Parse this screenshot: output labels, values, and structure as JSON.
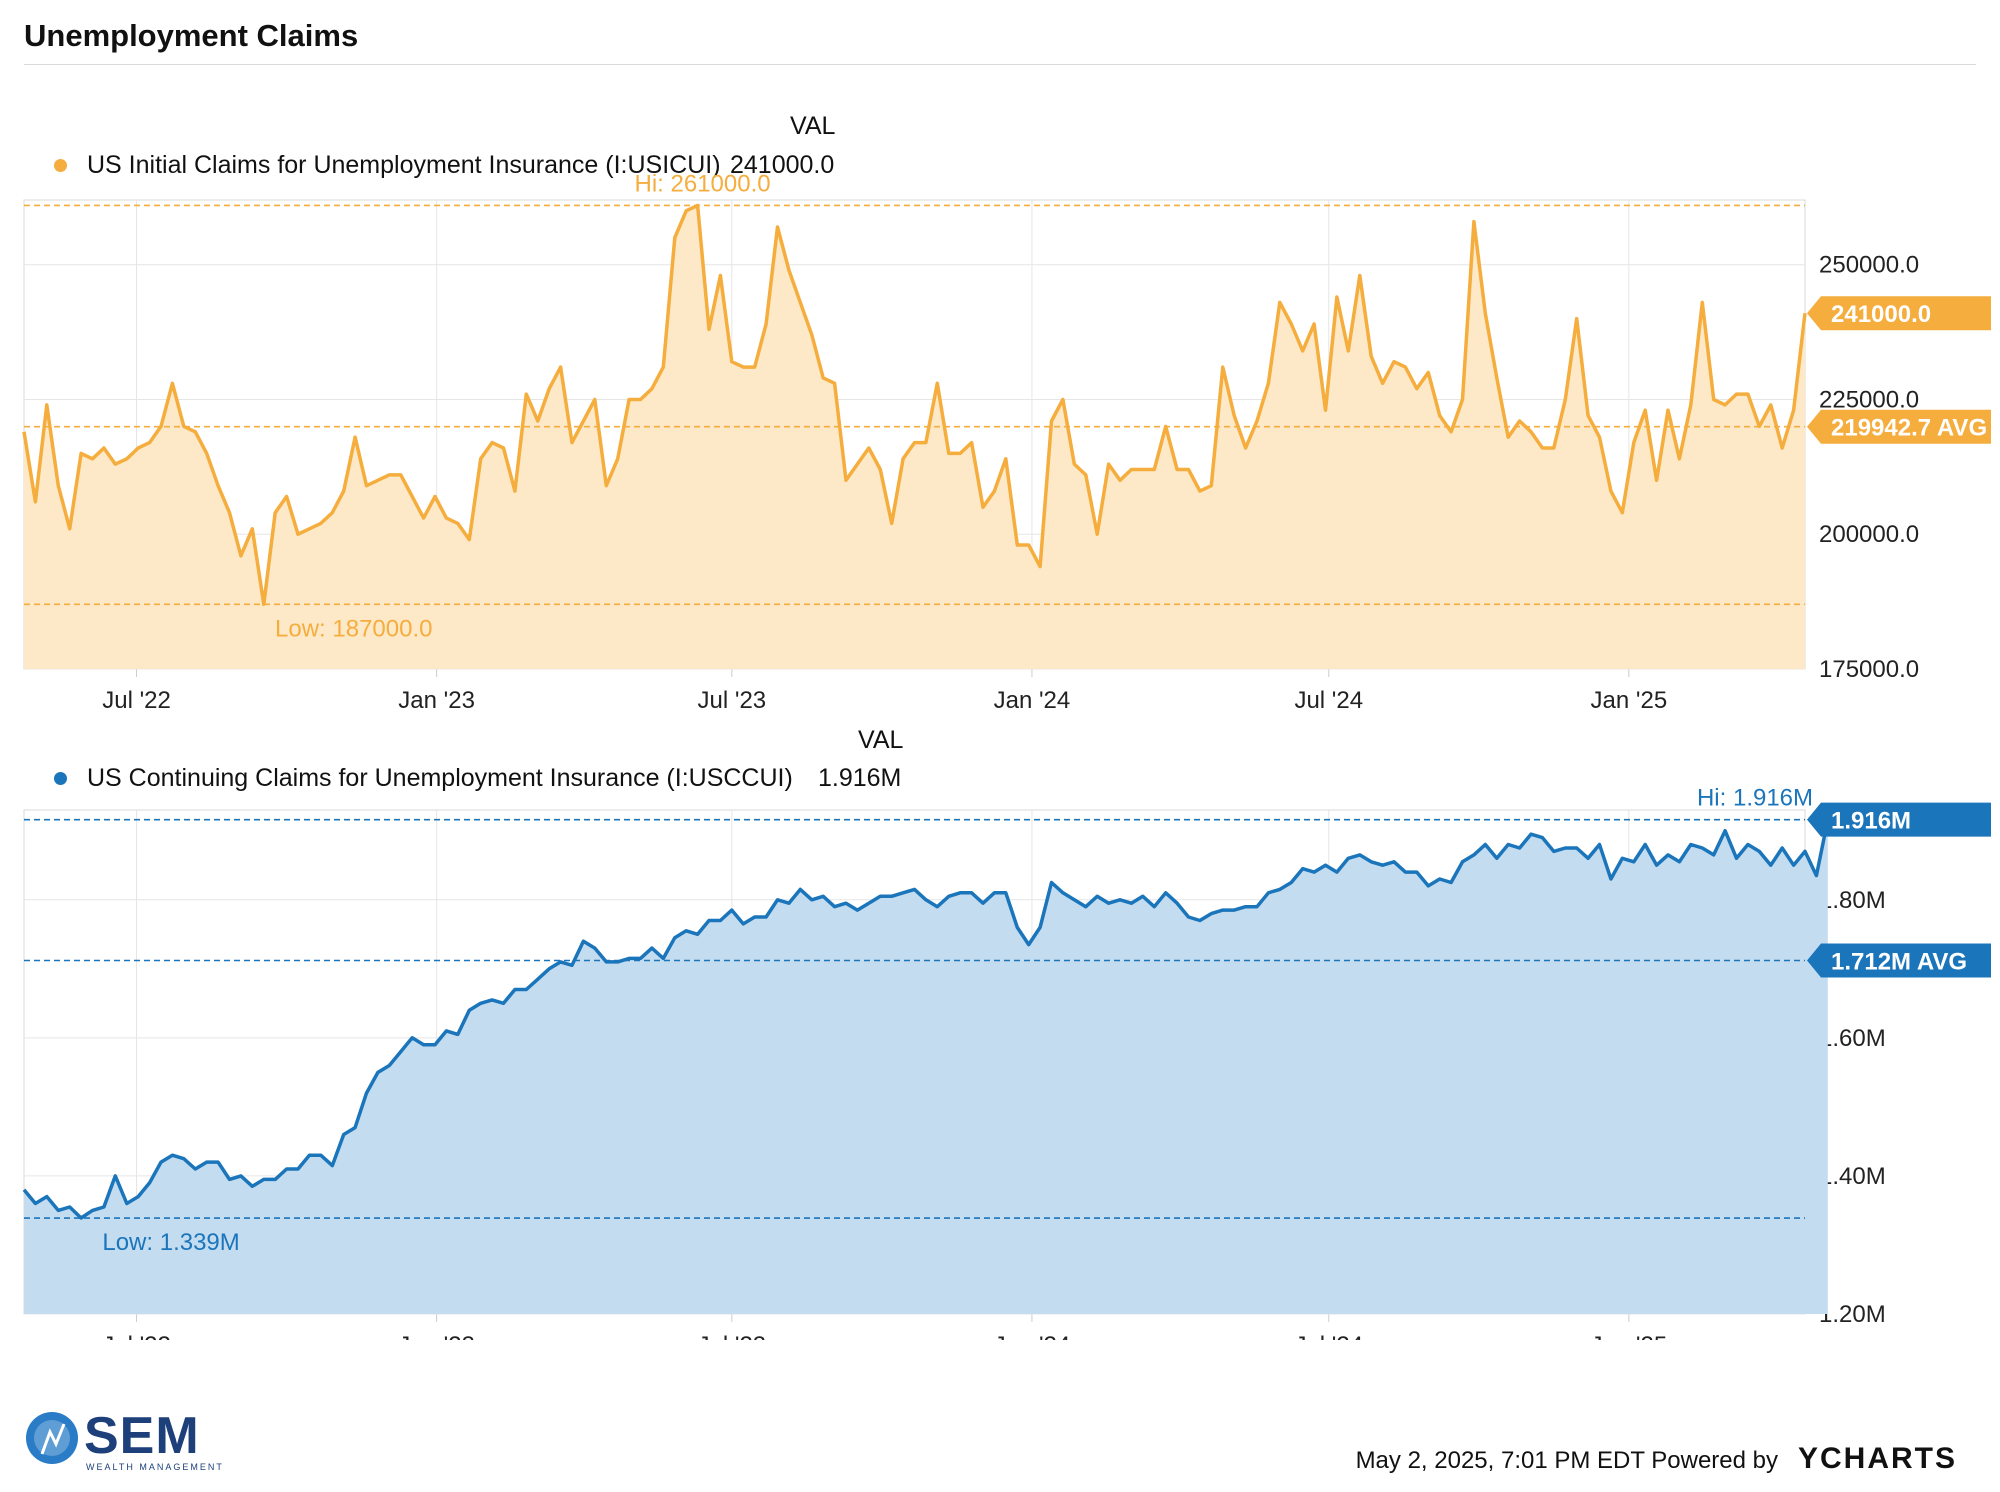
{
  "header": {
    "title": "Unemployment Claims"
  },
  "footer": {
    "timestamp": "May 2, 2025, 7:01 PM EDT Powered by",
    "ycharts": "YCHARTS",
    "logo_text": "SEM",
    "logo_sub": "WEALTH MANAGEMENT"
  },
  "colors": {
    "initial": "#f5ad3d",
    "continuing": "#1b75bb"
  },
  "x_axis": {
    "ticks": [
      "Jul '22",
      "Jan '23",
      "Jul '23",
      "Jan '24",
      "Jul '24",
      "Jan '25"
    ],
    "tick_dates": [
      "2022-07-01",
      "2023-01-01",
      "2023-07-01",
      "2024-01-01",
      "2024-07-01",
      "2025-01-01"
    ],
    "range": [
      "2022-04-23",
      "2025-04-19"
    ]
  },
  "chart_data": [
    {
      "type": "area",
      "legend_header": "VAL",
      "series": [
        {
          "name": "US Initial Claims for Unemployment Insurance (I:USICUI)",
          "latest": "241000.0"
        }
      ],
      "ylim": [
        175000,
        262000
      ],
      "yticks": [
        "175000.0",
        "200000.0",
        "225000.0",
        "250000.0"
      ],
      "ytick_values": [
        175000,
        200000,
        225000,
        250000
      ],
      "hi": {
        "label": "Hi: 261000.0",
        "value": 261000
      },
      "low": {
        "label": "Low: 187000.0",
        "value": 187000
      },
      "avg": {
        "label": "219942.7 AVG",
        "value": 219942.7
      },
      "last_label": "241000.0",
      "legend": "top-left",
      "grid": true,
      "start_date": "2022-04-23",
      "values": [
        219000,
        206000,
        224000,
        209000,
        201000,
        215000,
        214000,
        216000,
        213000,
        214000,
        216000,
        217000,
        220000,
        228000,
        220000,
        219000,
        215000,
        209000,
        204000,
        196000,
        201000,
        187000,
        204000,
        207000,
        200000,
        201000,
        202000,
        204000,
        208000,
        218000,
        209000,
        210000,
        211000,
        211000,
        207000,
        203000,
        207000,
        203000,
        202000,
        199000,
        214000,
        217000,
        216000,
        208000,
        226000,
        221000,
        227000,
        231000,
        217000,
        221000,
        225000,
        209000,
        214000,
        225000,
        225000,
        227000,
        231000,
        255000,
        260000,
        261000,
        238000,
        248000,
        232000,
        231000,
        231000,
        239000,
        257000,
        249000,
        243000,
        237000,
        229000,
        228000,
        210000,
        213000,
        216000,
        212000,
        202000,
        214000,
        217000,
        217000,
        228000,
        215000,
        215000,
        217000,
        205000,
        208000,
        214000,
        198000,
        198000,
        194000,
        221000,
        225000,
        213000,
        211000,
        200000,
        213000,
        210000,
        212000,
        212000,
        212000,
        220000,
        212000,
        212000,
        208000,
        209000,
        231000,
        222000,
        216000,
        221000,
        228000,
        243000,
        239000,
        234000,
        239000,
        223000,
        244000,
        234000,
        248000,
        233000,
        228000,
        232000,
        231000,
        227000,
        230000,
        222000,
        219000,
        225000,
        258000,
        241000,
        229000,
        218000,
        221000,
        219000,
        216000,
        216000,
        225000,
        240000,
        222000,
        218000,
        208000,
        204000,
        217000,
        223000,
        210000,
        223000,
        214000,
        224000,
        243000,
        225000,
        224000,
        226000,
        226000,
        220000,
        224000,
        216000,
        223000,
        241000
      ]
    },
    {
      "type": "area",
      "legend_header": "VAL",
      "series": [
        {
          "name": "US Continuing Claims for Unemployment Insurance (I:USCCUI)",
          "latest": "1.916M"
        }
      ],
      "ylim": [
        1.2,
        1.93
      ],
      "yticks": [
        "1.20M",
        "1.40M",
        "1.60M",
        "1.80M"
      ],
      "ytick_values": [
        1.2,
        1.4,
        1.6,
        1.8
      ],
      "hi": {
        "label": "Hi: 1.916M",
        "value": 1.916
      },
      "low": {
        "label": "Low: 1.339M",
        "value": 1.339
      },
      "avg": {
        "label": "1.712M AVG",
        "value": 1.712
      },
      "last_label": "1.916M",
      "legend": "top-left",
      "grid": true,
      "start_date": "2022-04-23",
      "values": [
        1.38,
        1.36,
        1.37,
        1.35,
        1.355,
        1.339,
        1.35,
        1.355,
        1.4,
        1.36,
        1.37,
        1.39,
        1.42,
        1.43,
        1.425,
        1.41,
        1.42,
        1.42,
        1.395,
        1.4,
        1.385,
        1.395,
        1.395,
        1.41,
        1.41,
        1.43,
        1.43,
        1.415,
        1.46,
        1.47,
        1.52,
        1.55,
        1.56,
        1.58,
        1.6,
        1.59,
        1.59,
        1.61,
        1.605,
        1.64,
        1.65,
        1.655,
        1.65,
        1.67,
        1.67,
        1.685,
        1.7,
        1.71,
        1.705,
        1.74,
        1.73,
        1.71,
        1.71,
        1.715,
        1.715,
        1.73,
        1.715,
        1.745,
        1.755,
        1.75,
        1.77,
        1.77,
        1.785,
        1.765,
        1.775,
        1.775,
        1.8,
        1.795,
        1.815,
        1.8,
        1.805,
        1.79,
        1.795,
        1.785,
        1.795,
        1.805,
        1.805,
        1.81,
        1.815,
        1.8,
        1.79,
        1.805,
        1.81,
        1.81,
        1.795,
        1.81,
        1.81,
        1.76,
        1.735,
        1.76,
        1.825,
        1.81,
        1.8,
        1.79,
        1.805,
        1.795,
        1.8,
        1.795,
        1.805,
        1.79,
        1.81,
        1.795,
        1.775,
        1.77,
        1.78,
        1.785,
        1.785,
        1.79,
        1.79,
        1.81,
        1.815,
        1.825,
        1.845,
        1.84,
        1.85,
        1.84,
        1.86,
        1.865,
        1.855,
        1.85,
        1.855,
        1.84,
        1.84,
        1.82,
        1.83,
        1.825,
        1.855,
        1.865,
        1.88,
        1.86,
        1.88,
        1.875,
        1.895,
        1.89,
        1.87,
        1.875,
        1.875,
        1.86,
        1.88,
        1.83,
        1.86,
        1.855,
        1.88,
        1.85,
        1.865,
        1.855,
        1.88,
        1.875,
        1.865,
        1.9,
        1.86,
        1.88,
        1.87,
        1.85,
        1.875,
        1.85,
        1.87,
        1.835,
        1.916
      ]
    }
  ]
}
